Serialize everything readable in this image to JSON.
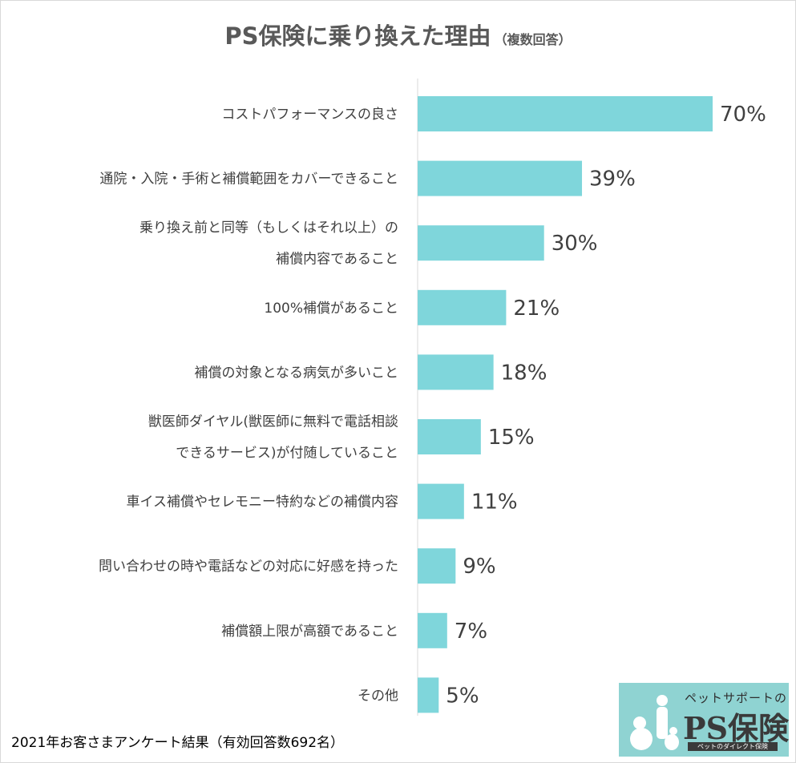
{
  "title": "PS保険に乗り換えた理由",
  "title_note": "（複数回答）",
  "footnote": "2021年お客さまアンケート結果（有効回答数692名）",
  "logo": {
    "top_text": "ペットサポートの",
    "main_text": "PS保険",
    "bottom_text": "ペットのダイレクト保険"
  },
  "colors": {
    "bar": "#7fd6db",
    "logo_bg": "#8fd3d2",
    "title": "#595959"
  },
  "chart_data": {
    "type": "bar",
    "orientation": "horizontal",
    "categories": [
      [
        "コストパフォーマンスの良さ"
      ],
      [
        "通院・入院・手術と補償範囲をカバーできること"
      ],
      [
        "乗り換え前と同等（もしくはそれ以上）の",
        "補償内容であること"
      ],
      [
        "100%補償があること"
      ],
      [
        "補償の対象となる病気が多いこと"
      ],
      [
        "獣医師ダイヤル(獣医師に無料で電話相談",
        "できるサービス)が付随していること"
      ],
      [
        "車イス補償やセレモニー特約などの補償内容"
      ],
      [
        "問い合わせの時や電話などの対応に好感を持った"
      ],
      [
        "補償額上限が高額であること"
      ],
      [
        "その他"
      ]
    ],
    "values": [
      70,
      39,
      30,
      21,
      18,
      15,
      11,
      9,
      7,
      5
    ],
    "value_labels": [
      "70%",
      "39%",
      "30%",
      "21%",
      "18%",
      "15%",
      "11%",
      "9%",
      "7%",
      "5%"
    ],
    "unit": "%",
    "xlim": [
      0,
      100
    ],
    "grid": false,
    "legend": "none"
  }
}
